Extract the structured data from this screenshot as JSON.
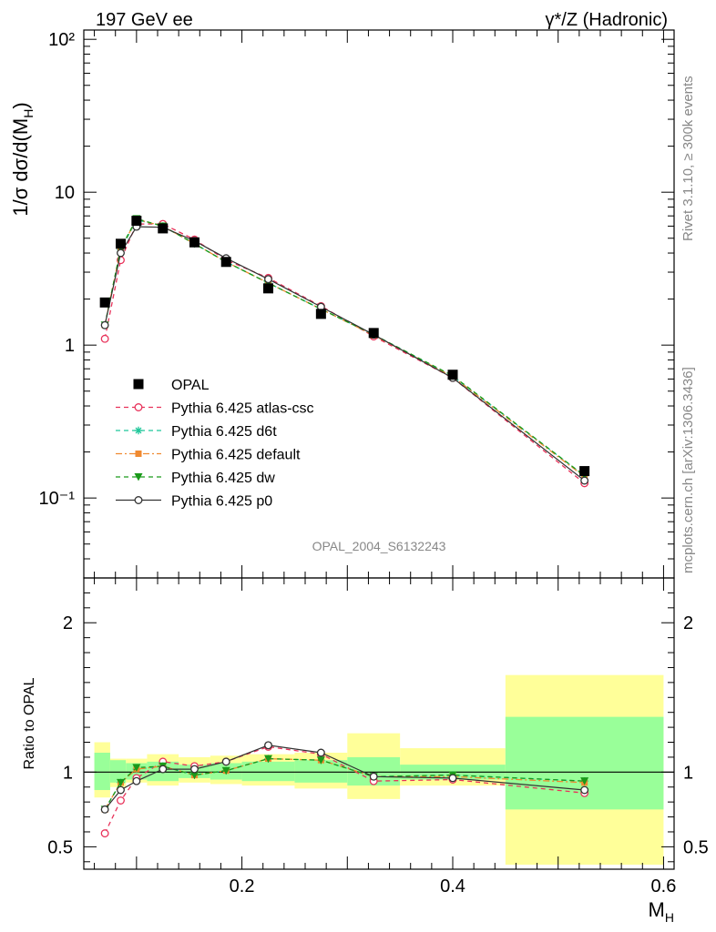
{
  "header": {
    "left": "197 GeV ee",
    "right": "γ*/Z (Hadronic)"
  },
  "side_labels": {
    "rivet": "Rivet 3.1.10, ≥ 300k events",
    "mcplots": "mcplots.cern.ch [arXiv:1306.3436]"
  },
  "analysis_id": "OPAL_2004_S6132243",
  "colors": {
    "OPAL": "#000000",
    "atlas_csc": "#e8325a",
    "d6t": "#1fc79a",
    "default": "#f08a30",
    "dw": "#1a9a1a",
    "p0": "#333333",
    "band_inner": "#99ff99",
    "band_outer": "#ffff99"
  },
  "chart_data": [
    {
      "type": "line",
      "panel": "main",
      "ylabel": "1/σ dσ/d(M_H)",
      "log_y": true,
      "xlim": [
        0.05,
        0.61
      ],
      "ylim": [
        0.03,
        115
      ],
      "y_tick_labels": [
        "10⁻¹",
        "1",
        "10",
        "10²"
      ],
      "legend_position": "middle-left",
      "x": [
        0.07,
        0.085,
        0.1,
        0.125,
        0.155,
        0.185,
        0.225,
        0.275,
        0.325,
        0.4,
        0.525
      ],
      "series": [
        {
          "name": "OPAL",
          "key": "OPAL",
          "marker": "square",
          "values": [
            1.9,
            4.6,
            6.5,
            5.8,
            4.7,
            3.5,
            2.35,
            1.6,
            1.2,
            0.64,
            0.15
          ]
        },
        {
          "name": "Pythia 6.425 atlas-csc",
          "key": "atlas_csc",
          "marker": "open-circle",
          "dash": "dashed",
          "values": [
            1.1,
            3.6,
            6.2,
            6.2,
            4.9,
            3.6,
            2.75,
            1.8,
            1.14,
            0.61,
            0.125
          ]
        },
        {
          "name": "Pythia 6.425 d6t",
          "key": "d6t",
          "marker": "star",
          "dash": "dashed",
          "values": [
            1.35,
            4.2,
            6.6,
            6.0,
            4.6,
            3.5,
            2.55,
            1.72,
            1.17,
            0.625,
            0.14
          ]
        },
        {
          "name": "Pythia 6.425 default",
          "key": "default",
          "marker": "filled-square",
          "dash": "dashdot",
          "values": [
            1.35,
            4.25,
            6.65,
            6.0,
            4.6,
            3.5,
            2.55,
            1.72,
            1.16,
            0.62,
            0.138
          ]
        },
        {
          "name": "Pythia 6.425 dw",
          "key": "dw",
          "marker": "triangle-down",
          "dash": "dashed",
          "values": [
            1.35,
            4.3,
            6.7,
            6.0,
            4.6,
            3.5,
            2.55,
            1.72,
            1.17,
            0.63,
            0.14
          ]
        },
        {
          "name": "Pythia 6.425 p0",
          "key": "p0",
          "marker": "open-circle",
          "dash": "solid",
          "values": [
            1.35,
            4.0,
            5.95,
            5.9,
            4.8,
            3.7,
            2.7,
            1.78,
            1.17,
            0.61,
            0.13
          ]
        }
      ]
    },
    {
      "type": "line",
      "panel": "ratio",
      "xlabel": "M_H",
      "ylabel": "Ratio to OPAL",
      "xlim": [
        0.05,
        0.61
      ],
      "ylim": [
        0.35,
        2.3
      ],
      "y_ticks": [
        0.5,
        1,
        2
      ],
      "x_ticks": [
        0.2,
        0.4,
        0.6
      ],
      "bins": [
        [
          0.06,
          0.075
        ],
        [
          0.075,
          0.09
        ],
        [
          0.09,
          0.11
        ],
        [
          0.11,
          0.14
        ],
        [
          0.14,
          0.17
        ],
        [
          0.17,
          0.2
        ],
        [
          0.2,
          0.25
        ],
        [
          0.25,
          0.3
        ],
        [
          0.3,
          0.35
        ],
        [
          0.35,
          0.45
        ],
        [
          0.45,
          0.6
        ]
      ],
      "band_inner": [
        [
          0.88,
          1.13
        ],
        [
          0.93,
          1.08
        ],
        [
          0.95,
          1.06
        ],
        [
          0.94,
          1.07
        ],
        [
          0.96,
          1.05
        ],
        [
          0.95,
          1.06
        ],
        [
          0.94,
          1.07
        ],
        [
          0.93,
          1.08
        ],
        [
          0.91,
          1.1
        ],
        [
          0.95,
          1.05
        ],
        [
          0.75,
          1.37
        ]
      ],
      "band_outer": [
        [
          0.83,
          1.2
        ],
        [
          0.9,
          1.09
        ],
        [
          0.93,
          1.09
        ],
        [
          0.91,
          1.12
        ],
        [
          0.93,
          1.1
        ],
        [
          0.92,
          1.11
        ],
        [
          0.91,
          1.12
        ],
        [
          0.89,
          1.13
        ],
        [
          0.82,
          1.26
        ],
        [
          0.91,
          1.16
        ],
        [
          0.38,
          1.65
        ]
      ],
      "series": [
        {
          "name": "Pythia 6.425 atlas-csc",
          "key": "atlas_csc",
          "values": [
            0.59,
            0.81,
            0.96,
            1.07,
            1.04,
            1.07,
            1.17,
            1.12,
            0.94,
            0.95,
            0.86
          ]
        },
        {
          "name": "Pythia 6.425 d6t",
          "key": "d6t",
          "values": [
            0.75,
            0.93,
            1.02,
            1.04,
            0.98,
            1.01,
            1.09,
            1.08,
            0.97,
            0.98,
            0.94
          ]
        },
        {
          "name": "Pythia 6.425 default",
          "key": "default",
          "values": [
            0.75,
            0.93,
            1.02,
            1.04,
            0.98,
            1.01,
            1.09,
            1.08,
            0.97,
            0.97,
            0.93
          ]
        },
        {
          "name": "Pythia 6.425 dw",
          "key": "dw",
          "values": [
            0.75,
            0.93,
            1.03,
            1.04,
            0.98,
            1.01,
            1.09,
            1.08,
            0.97,
            0.98,
            0.94
          ]
        },
        {
          "name": "Pythia 6.425 p0",
          "key": "p0",
          "values": [
            0.75,
            0.88,
            0.94,
            1.02,
            1.02,
            1.07,
            1.18,
            1.13,
            0.97,
            0.96,
            0.88
          ]
        }
      ]
    }
  ]
}
